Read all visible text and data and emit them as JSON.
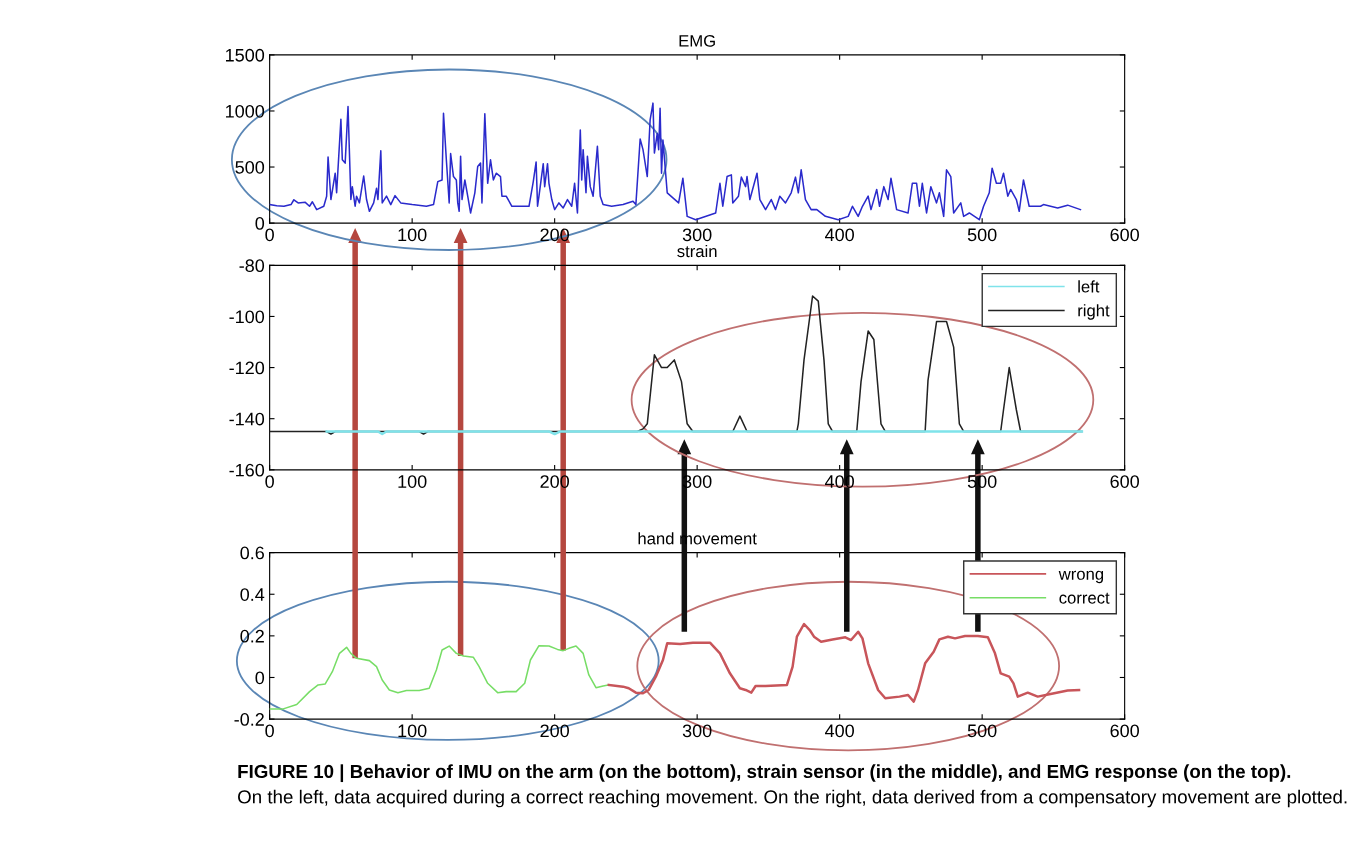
{
  "chart_data": [
    {
      "type": "line",
      "title": "EMG",
      "xlim": [
        0,
        600
      ],
      "xticks": [
        0,
        100,
        200,
        300,
        400,
        500,
        600
      ],
      "ylim": [
        0,
        1500
      ],
      "yticks": [
        0,
        500,
        1000,
        1500
      ],
      "grid": false,
      "legend": false,
      "series": [
        {
          "color": "#2a2acc",
          "x": [
            0,
            5,
            10,
            15,
            17,
            20,
            25,
            28,
            30,
            33,
            38,
            40,
            41,
            43,
            46,
            47,
            50,
            51,
            53,
            55,
            56,
            57,
            58,
            60,
            61,
            63,
            66,
            68,
            70,
            73,
            75,
            76,
            78,
            79,
            82,
            85,
            88,
            92,
            100,
            110,
            115,
            118,
            121,
            122,
            124,
            126,
            127,
            129,
            131,
            132,
            133,
            134,
            135,
            137,
            139,
            141,
            144,
            146,
            148,
            149,
            151,
            153,
            155,
            157,
            159,
            162,
            163,
            166,
            170,
            175,
            182,
            185,
            187,
            188,
            189,
            192,
            193,
            195,
            196,
            198,
            200,
            203,
            206,
            209,
            212,
            214,
            216,
            218,
            219,
            220,
            222,
            223,
            225,
            227,
            230,
            232,
            234,
            240,
            248,
            255,
            257,
            260,
            262,
            265,
            267,
            269,
            270,
            272,
            273,
            274,
            275,
            276,
            279,
            287,
            290,
            293,
            299,
            313,
            316,
            318,
            321,
            324,
            325,
            329,
            331,
            334,
            335,
            337,
            342,
            344,
            348,
            352,
            355,
            358,
            362,
            366,
            369,
            371,
            373,
            376,
            380,
            384,
            390,
            399,
            406,
            409,
            413,
            416,
            420,
            422,
            426,
            428,
            431,
            434,
            436,
            440,
            448,
            451,
            454,
            456,
            458,
            461,
            464,
            468,
            470,
            473,
            475,
            478,
            480,
            485,
            487,
            491,
            498,
            501,
            505,
            507,
            510,
            513,
            515,
            518,
            520,
            524,
            526,
            529,
            533,
            541,
            543,
            553,
            560,
            569
          ],
          "values": [
            165,
            155,
            150,
            165,
            208,
            180,
            185,
            150,
            190,
            120,
            150,
            240,
            590,
            210,
            445,
            270,
            925,
            565,
            535,
            1040,
            625,
            210,
            325,
            150,
            240,
            180,
            420,
            210,
            105,
            180,
            310,
            210,
            645,
            180,
            240,
            165,
            245,
            180,
            165,
            150,
            165,
            370,
            385,
            980,
            565,
            180,
            620,
            415,
            385,
            180,
            105,
            595,
            210,
            385,
            240,
            90,
            270,
            505,
            535,
            180,
            975,
            355,
            565,
            385,
            445,
            415,
            240,
            240,
            150,
            150,
            150,
            370,
            545,
            150,
            240,
            530,
            325,
            530,
            355,
            210,
            120,
            180,
            135,
            210,
            150,
            355,
            90,
            830,
            385,
            655,
            270,
            595,
            325,
            240,
            685,
            240,
            165,
            150,
            165,
            195,
            165,
            750,
            655,
            415,
            920,
            1070,
            625,
            800,
            655,
            1025,
            445,
            740,
            270,
            180,
            400,
            60,
            30,
            90,
            355,
            150,
            415,
            430,
            180,
            240,
            410,
            325,
            415,
            210,
            445,
            210,
            120,
            210,
            120,
            240,
            180,
            270,
            410,
            270,
            475,
            210,
            120,
            120,
            60,
            30,
            60,
            150,
            60,
            150,
            240,
            120,
            300,
            150,
            325,
            210,
            400,
            120,
            90,
            355,
            355,
            150,
            355,
            90,
            325,
            180,
            270,
            60,
            475,
            415,
            90,
            180,
            60,
            90,
            30,
            150,
            270,
            490,
            355,
            355,
            445,
            240,
            300,
            210,
            105,
            385,
            150,
            150,
            165,
            135,
            160,
            120
          ]
        }
      ]
    },
    {
      "type": "line",
      "title": "strain",
      "xlim": [
        0,
        600
      ],
      "xticks": [
        0,
        100,
        200,
        300,
        400,
        500,
        600
      ],
      "ylim": [
        -160,
        -80
      ],
      "yticks": [
        -160,
        -140,
        -120,
        -100,
        -80
      ],
      "grid": false,
      "legend": "top right",
      "series": [
        {
          "name": "left",
          "color": "#7fe3ea",
          "x": [
            40,
            76,
            79,
            82,
            196,
            200,
            204,
            570
          ],
          "values": [
            -145,
            -145,
            -146,
            -145,
            -145,
            -146,
            -145,
            -145
          ]
        },
        {
          "name": "right",
          "color": "#222222",
          "x": [
            0,
            40,
            43,
            46,
            105,
            108,
            111,
            258,
            262,
            265,
            270,
            275,
            279,
            284,
            289,
            293,
            297,
            325,
            330,
            335,
            370,
            371,
            375,
            381,
            385,
            389,
            392,
            395,
            412,
            415,
            420,
            424,
            429,
            432,
            460,
            462,
            468,
            475,
            480,
            484,
            487,
            513,
            515,
            519,
            524,
            527,
            570
          ],
          "values": [
            -145,
            -145,
            -146,
            -145,
            -145,
            -146,
            -145,
            -145,
            -144,
            -142,
            -115,
            -120,
            -120,
            -117,
            -125.5,
            -142,
            -145,
            -145,
            -139,
            -145,
            -145,
            -142,
            -117,
            -92,
            -94,
            -117,
            -142,
            -145,
            -145,
            -125.5,
            -105.7,
            -109,
            -142,
            -145,
            -145,
            -125,
            -102,
            -102,
            -112,
            -142,
            -145,
            -145,
            -136.5,
            -120,
            -136.5,
            -145,
            -145
          ]
        }
      ]
    },
    {
      "type": "line",
      "title": "hand movement",
      "xlim": [
        0,
        600
      ],
      "xticks": [
        0,
        100,
        200,
        300,
        400,
        500,
        600
      ],
      "ylim": [
        -0.2,
        0.6
      ],
      "yticks": [
        -0.2,
        0,
        0.2,
        0.4,
        0.6
      ],
      "grid": false,
      "legend": "top right",
      "annotations": [
        "FIGURE 10 | Behavior of IMU on the arm (on the bottom), strain sensor (in the middle), and EMG response (on the top).",
        "On the left, data acquired during a correct reaching movement. On the right, data derived from a compensatory movement are plotted."
      ],
      "series": [
        {
          "name": "wrong",
          "color": "#c8555a",
          "x": [
            238,
            248,
            252,
            257,
            262,
            266,
            271,
            276,
            279,
            288,
            297,
            309,
            316,
            323,
            330,
            334,
            338,
            341,
            348,
            363,
            367,
            370,
            375,
            379,
            382,
            387,
            395,
            404,
            408,
            413,
            416,
            420,
            427,
            432,
            442,
            448,
            452,
            455,
            460,
            466,
            470,
            476,
            481,
            488,
            497,
            504,
            509,
            513,
            519,
            522,
            525,
            532,
            539,
            548,
            560,
            568
          ],
          "values": [
            -0.036,
            -0.044,
            -0.052,
            -0.073,
            -0.076,
            -0.06,
            0.004,
            0.084,
            0.164,
            0.161,
            0.167,
            0.167,
            0.116,
            0.02,
            -0.052,
            -0.06,
            -0.073,
            -0.041,
            -0.041,
            -0.036,
            0.052,
            0.196,
            0.257,
            0.228,
            0.196,
            0.172,
            0.183,
            0.193,
            0.18,
            0.22,
            0.188,
            0.068,
            -0.06,
            -0.1,
            -0.092,
            -0.084,
            -0.116,
            -0.06,
            0.068,
            0.124,
            0.183,
            0.196,
            0.188,
            0.199,
            0.199,
            0.193,
            0.116,
            0.02,
            0.004,
            -0.028,
            -0.092,
            -0.073,
            -0.092,
            -0.079,
            -0.063,
            -0.06
          ]
        },
        {
          "name": "correct",
          "color": "#77dd66",
          "x": [
            0,
            9,
            19,
            28,
            34,
            39,
            44,
            49,
            54,
            57,
            61,
            70,
            75,
            79,
            84,
            90,
            96,
            105,
            112,
            117,
            121,
            126,
            131,
            136,
            143,
            147,
            153,
            160,
            166,
            173,
            179,
            183,
            189,
            196,
            202,
            206,
            210,
            215,
            220,
            224,
            229,
            234,
            238
          ],
          "values": [
            -0.152,
            -0.152,
            -0.13,
            -0.068,
            -0.036,
            -0.031,
            0.028,
            0.116,
            0.145,
            0.116,
            0.092,
            0.081,
            0.052,
            -0.012,
            -0.06,
            -0.073,
            -0.063,
            -0.063,
            -0.052,
            0.036,
            0.132,
            0.151,
            0.116,
            0.103,
            0.097,
            0.052,
            -0.028,
            -0.073,
            -0.068,
            -0.068,
            -0.028,
            0.084,
            0.153,
            0.151,
            0.135,
            0.129,
            0.14,
            0.151,
            0.116,
            0.012,
            -0.049,
            -0.041,
            -0.036
          ]
        }
      ]
    }
  ]
}
